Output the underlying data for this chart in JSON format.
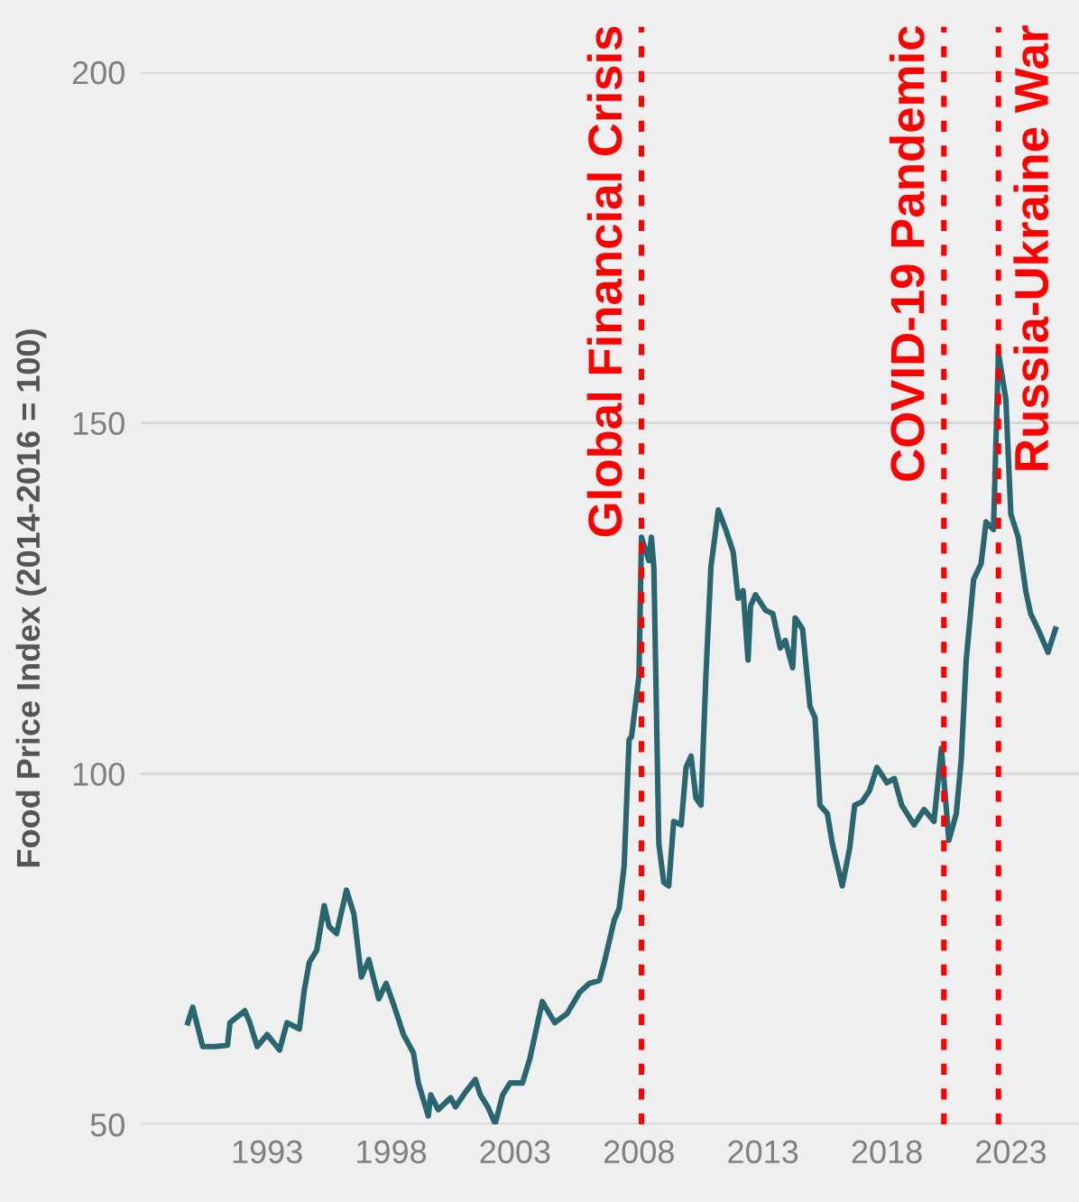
{
  "chart_data": {
    "type": "line",
    "ylabel": "Food Price Index (2014-2016 = 100)",
    "x": [
      1989.8,
      1990.0,
      1990.4,
      1990.9,
      1991.4,
      1991.5,
      1992.1,
      1992.3,
      1992.6,
      1993.0,
      1993.5,
      1993.8,
      1994.3,
      1994.5,
      1994.7,
      1995.0,
      1995.3,
      1995.5,
      1995.8,
      1996.2,
      1996.5,
      1996.8,
      1997.1,
      1997.5,
      1997.8,
      1998.1,
      1998.5,
      1998.9,
      1999.1,
      1999.5,
      1999.6,
      1999.9,
      2000.4,
      2000.6,
      2001.0,
      2001.4,
      2001.6,
      2001.9,
      2002.2,
      2002.5,
      2002.8,
      2003.3,
      2003.6,
      2004.1,
      2004.6,
      2005.1,
      2005.6,
      2006.0,
      2006.4,
      2006.6,
      2007.0,
      2007.2,
      2007.4,
      2007.6,
      2007.7,
      2008.0,
      2008.1,
      2008.4,
      2008.5,
      2008.6,
      2008.8,
      2009.0,
      2009.2,
      2009.4,
      2009.7,
      2009.9,
      2010.1,
      2010.3,
      2010.5,
      2010.7,
      2010.9,
      2011.2,
      2011.5,
      2011.8,
      2012.0,
      2012.2,
      2012.4,
      2012.5,
      2012.7,
      2013.1,
      2013.4,
      2013.7,
      2013.9,
      2014.2,
      2014.3,
      2014.6,
      2014.9,
      2015.1,
      2015.3,
      2015.6,
      2015.8,
      2016.2,
      2016.5,
      2016.7,
      2017.0,
      2017.3,
      2017.6,
      2018.0,
      2018.3,
      2018.6,
      2019.1,
      2019.5,
      2019.9,
      2020.2,
      2020.5,
      2020.8,
      2021.0,
      2021.2,
      2021.5,
      2021.8,
      2022.0,
      2022.3,
      2022.5,
      2022.8,
      2023.0,
      2023.3,
      2023.6,
      2023.8,
      2024.1,
      2024.5,
      2024.8
    ],
    "series": [
      {
        "color": "#2a6670",
        "values": [
          64.5,
          66.7,
          61.1,
          61.1,
          61.3,
          64.5,
          66.2,
          64.5,
          61.1,
          62.8,
          60.6,
          64.5,
          63.6,
          69.2,
          73.1,
          74.8,
          81.2,
          78.2,
          77.2,
          83.4,
          80.0,
          71.0,
          73.5,
          67.9,
          70.1,
          67.1,
          62.8,
          60.2,
          55.9,
          51.2,
          54.2,
          52.1,
          53.8,
          52.5,
          54.6,
          56.4,
          54.2,
          52.5,
          50.1,
          54.2,
          55.9,
          55.9,
          59.4,
          67.5,
          64.5,
          65.8,
          68.8,
          70.1,
          70.5,
          73.1,
          79.1,
          80.8,
          86.8,
          104.8,
          105.3,
          114.0,
          133.7,
          130.4,
          133.7,
          129.4,
          90.0,
          84.5,
          84.0,
          93.2,
          92.7,
          100.9,
          102.5,
          96.5,
          95.5,
          114.0,
          129.4,
          137.6,
          134.8,
          131.6,
          125.0,
          126.1,
          116.2,
          123.9,
          125.5,
          123.3,
          122.8,
          117.9,
          119.0,
          115.1,
          122.2,
          120.6,
          109.6,
          108.0,
          95.5,
          94.3,
          90.0,
          84.0,
          89.4,
          95.5,
          96.0,
          97.6,
          100.9,
          98.7,
          99.3,
          95.5,
          92.7,
          94.9,
          93.2,
          103.6,
          90.5,
          94.3,
          102.0,
          116.2,
          127.7,
          129.9,
          135.9,
          134.8,
          160.0,
          153.4,
          137.0,
          133.7,
          126.1,
          122.8,
          120.6,
          117.3,
          120.6
        ]
      }
    ],
    "xlim": [
      1987.9,
      2025.75
    ],
    "ylim": [
      50,
      200
    ],
    "xticks": [
      1993,
      1998,
      2003,
      2008,
      2013,
      2018,
      2023
    ],
    "yticks": [
      50,
      100,
      150,
      200
    ],
    "grid": "y",
    "line_style": "solid",
    "ref_lines": [
      {
        "axis": "x",
        "value": 2008.1,
        "label": "Global Financial Crisis",
        "color": "#ff0000",
        "line_style": "dotted"
      },
      {
        "axis": "x",
        "value": 2020.3,
        "label": "COVID-19 Pandemic",
        "color": "#ff0000",
        "line_style": "dotted"
      },
      {
        "axis": "x",
        "value": 2022.5,
        "label": "Russia-Ukraine War",
        "color": "#ff0000",
        "line_style": "dotted"
      }
    ]
  }
}
